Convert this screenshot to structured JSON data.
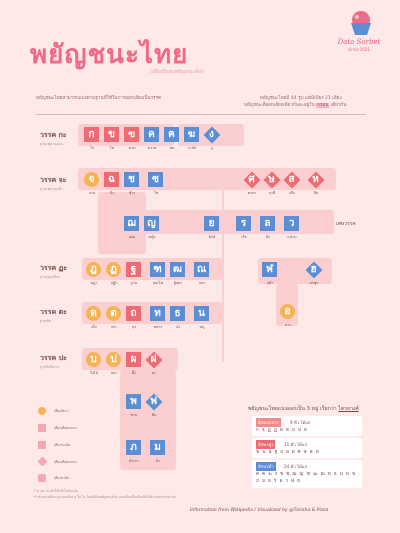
{
  "title": "พยัญชนะไทย",
  "subtitle": "(เสียงบีบลมพยัญชนะต้น)",
  "logo": {
    "name": "Data Sorbet",
    "since": "since 2021",
    "icon": "sorbet-cup-icon"
  },
  "intro": "พยัญชนะไทยสามารถแบ่งตามฐานที่ใช้ในการออกเสียงเป็นวรรค",
  "info": {
    "line1": "พยัญชนะไทยมี 44 รูป แต่มีเพียง 21 เสียง",
    "line2_a": "พยัญชนะที่ออกเสียงเดียวกันจะอยู่ใน",
    "line2_hl": "กรอบ",
    "line2_b": "เดียวกัน"
  },
  "rows": [
    {
      "label": "วรรค กะ",
      "sub": "ฐานเพดานอ่อน"
    },
    {
      "label": "วรรค จะ",
      "sub": "ฐานเพดานแข็ง"
    },
    {
      "label": "วรรค ฏะ",
      "sub": "ฐานปุ่มเหงือก"
    },
    {
      "label": "วรรค ตะ",
      "sub": "ฐานฟัน"
    },
    {
      "label": "วรรค ปะ",
      "sub": "ฐานริมฝีปาก"
    }
  ],
  "desha_label": "เศษวรรค",
  "letters": {
    "ko": {
      "ch": "ก",
      "cap": "ไก่"
    },
    "kho_khai": {
      "ch": "ข",
      "cap": "ไข่"
    },
    "kho_khuat": {
      "ch": "ฃ",
      "cap": "ขวด"
    },
    "kho_khwai": {
      "ch": "ค",
      "cap": "ควาย"
    },
    "kho_khon": {
      "ch": "ฅ",
      "cap": "คน"
    },
    "kho_rakhang": {
      "ch": "ฆ",
      "cap": "ระฆัง"
    },
    "ngo": {
      "ch": "ง",
      "cap": "งู"
    },
    "cho_chan": {
      "ch": "จ",
      "cap": "จาน"
    },
    "cho_ching": {
      "ch": "ฉ",
      "cap": "ฉิ่ง"
    },
    "cho_chang": {
      "ch": "ช",
      "cap": "ช้าง"
    },
    "so_so": {
      "ch": "ซ",
      "cap": "โซ่"
    },
    "so_sala": {
      "ch": "ศ",
      "cap": "ศาลา"
    },
    "so_ruesi": {
      "ch": "ษ",
      "cap": "ฤาษี"
    },
    "so_suea": {
      "ch": "ส",
      "cap": "เสือ"
    },
    "ho_hip": {
      "ch": "ห",
      "cap": "หีบ"
    },
    "cho_choe": {
      "ch": "ฌ",
      "cap": "เฌอ"
    },
    "yo_ying": {
      "ch": "ญ",
      "cap": "หญิง"
    },
    "yo_yak": {
      "ch": "ย",
      "cap": "ยักษ์"
    },
    "ro_ruea": {
      "ch": "ร",
      "cap": "เรือ"
    },
    "lo_ling": {
      "ch": "ล",
      "cap": "ลิง"
    },
    "wo_waen": {
      "ch": "ว",
      "cap": "แหวน"
    },
    "do_chada": {
      "ch": "ฎ",
      "cap": "ชฎา"
    },
    "to_patak": {
      "ch": "ฏ",
      "cap": "ปฏัก"
    },
    "tho_than": {
      "ch": "ฐ",
      "cap": "ฐาน"
    },
    "tho_montho": {
      "ch": "ฑ",
      "cap": "มณโฑ"
    },
    "tho_phuthao": {
      "ch": "ฒ",
      "cap": "ผู้เฒ่า"
    },
    "no_nen": {
      "ch": "ณ",
      "cap": "เณร"
    },
    "lo_chula": {
      "ch": "ฬ",
      "cap": "จุฬา"
    },
    "ho_nokhuk": {
      "ch": "ฮ",
      "cap": "นกฮูก"
    },
    "o_ang": {
      "ch": "อ",
      "cap": "อ่าง"
    },
    "do_dek": {
      "ch": "ด",
      "cap": "เด็ก"
    },
    "to_tao": {
      "ch": "ต",
      "cap": "เต่า"
    },
    "tho_thung": {
      "ch": "ถ",
      "cap": "ถุง"
    },
    "tho_thahan": {
      "ch": "ท",
      "cap": "ทหาร"
    },
    "tho_thong": {
      "ch": "ธ",
      "cap": "ธง"
    },
    "no_nu": {
      "ch": "น",
      "cap": "หนู"
    },
    "bo_baimai": {
      "ch": "บ",
      "cap": "ใบไม้"
    },
    "po_pla": {
      "ch": "ป",
      "cap": "ปลา"
    },
    "pho_phueng": {
      "ch": "ผ",
      "cap": "ผึ้ง"
    },
    "fo_fa": {
      "ch": "ฝ",
      "cap": "ฝา"
    },
    "pho_phan": {
      "ch": "พ",
      "cap": "พาน"
    },
    "fo_fan": {
      "ch": "ฟ",
      "cap": "ฟัน"
    },
    "pho_samphao": {
      "ch": "ภ",
      "cap": "สำเภา"
    },
    "mo_ma": {
      "ch": "ม",
      "cap": "ม้า"
    }
  },
  "legend": [
    {
      "icon": "circle-shape-icon",
      "text": "เสียงจัตวา"
    },
    {
      "icon": "double-square-icon",
      "text": "เสียงเสียดแทรก"
    },
    {
      "icon": "square-shape-icon",
      "text": "เสียงระเบิด"
    },
    {
      "icon": "diamond-shape-icon",
      "text": "เสียงเสียดแทรก"
    },
    {
      "icon": "rounded-square-icon",
      "text": "เสียงนาสิก"
    }
  ],
  "classes": {
    "title_a": "พยัญชนะไทยแบ่งออกเป็น 3 หมู่ เรียกว่า",
    "title_b": "ไตรยางศ์",
    "mid": {
      "tag": "อักษรกลาง",
      "count": "9 ตัว ได้แก่",
      "letters": "ก จ ฎ ฏ ด ต บ ป อ",
      "color": "#f08b8b"
    },
    "high": {
      "tag": "อักษรสูง",
      "count": "11 ตัว ได้แก่",
      "letters": "ข ฃ ฉ ฐ ถ ผ ฝ ศ ษ ส ห",
      "color": "#ef6b73"
    },
    "low": {
      "tag": "อักษรต่ำ",
      "count": "24 ตัว ได้แก่",
      "letters": "ค ฅ ฆ ง ช ซ ฌ ญ ฑ ฒ ณ ท ธ น พ ฟ ภ ม ย ร ล ว ฬ ฮ",
      "color": "#5b8ed4"
    }
  },
  "footnote1": "* ฃ และ ฅ เลิกใช้แล้วในปัจจุบัน",
  "footnote2": "** ตัวอย่างเสียง ญ แทนเสียง ย ใน ไอ โดยที่เป็นพยัญชนะท้าย ออกเสียงเป็นเสียงอื่นได้ตามหลักการสะกด",
  "credit": "Information from Wikipedia / Visualized by @Tarisha & Pizza"
}
